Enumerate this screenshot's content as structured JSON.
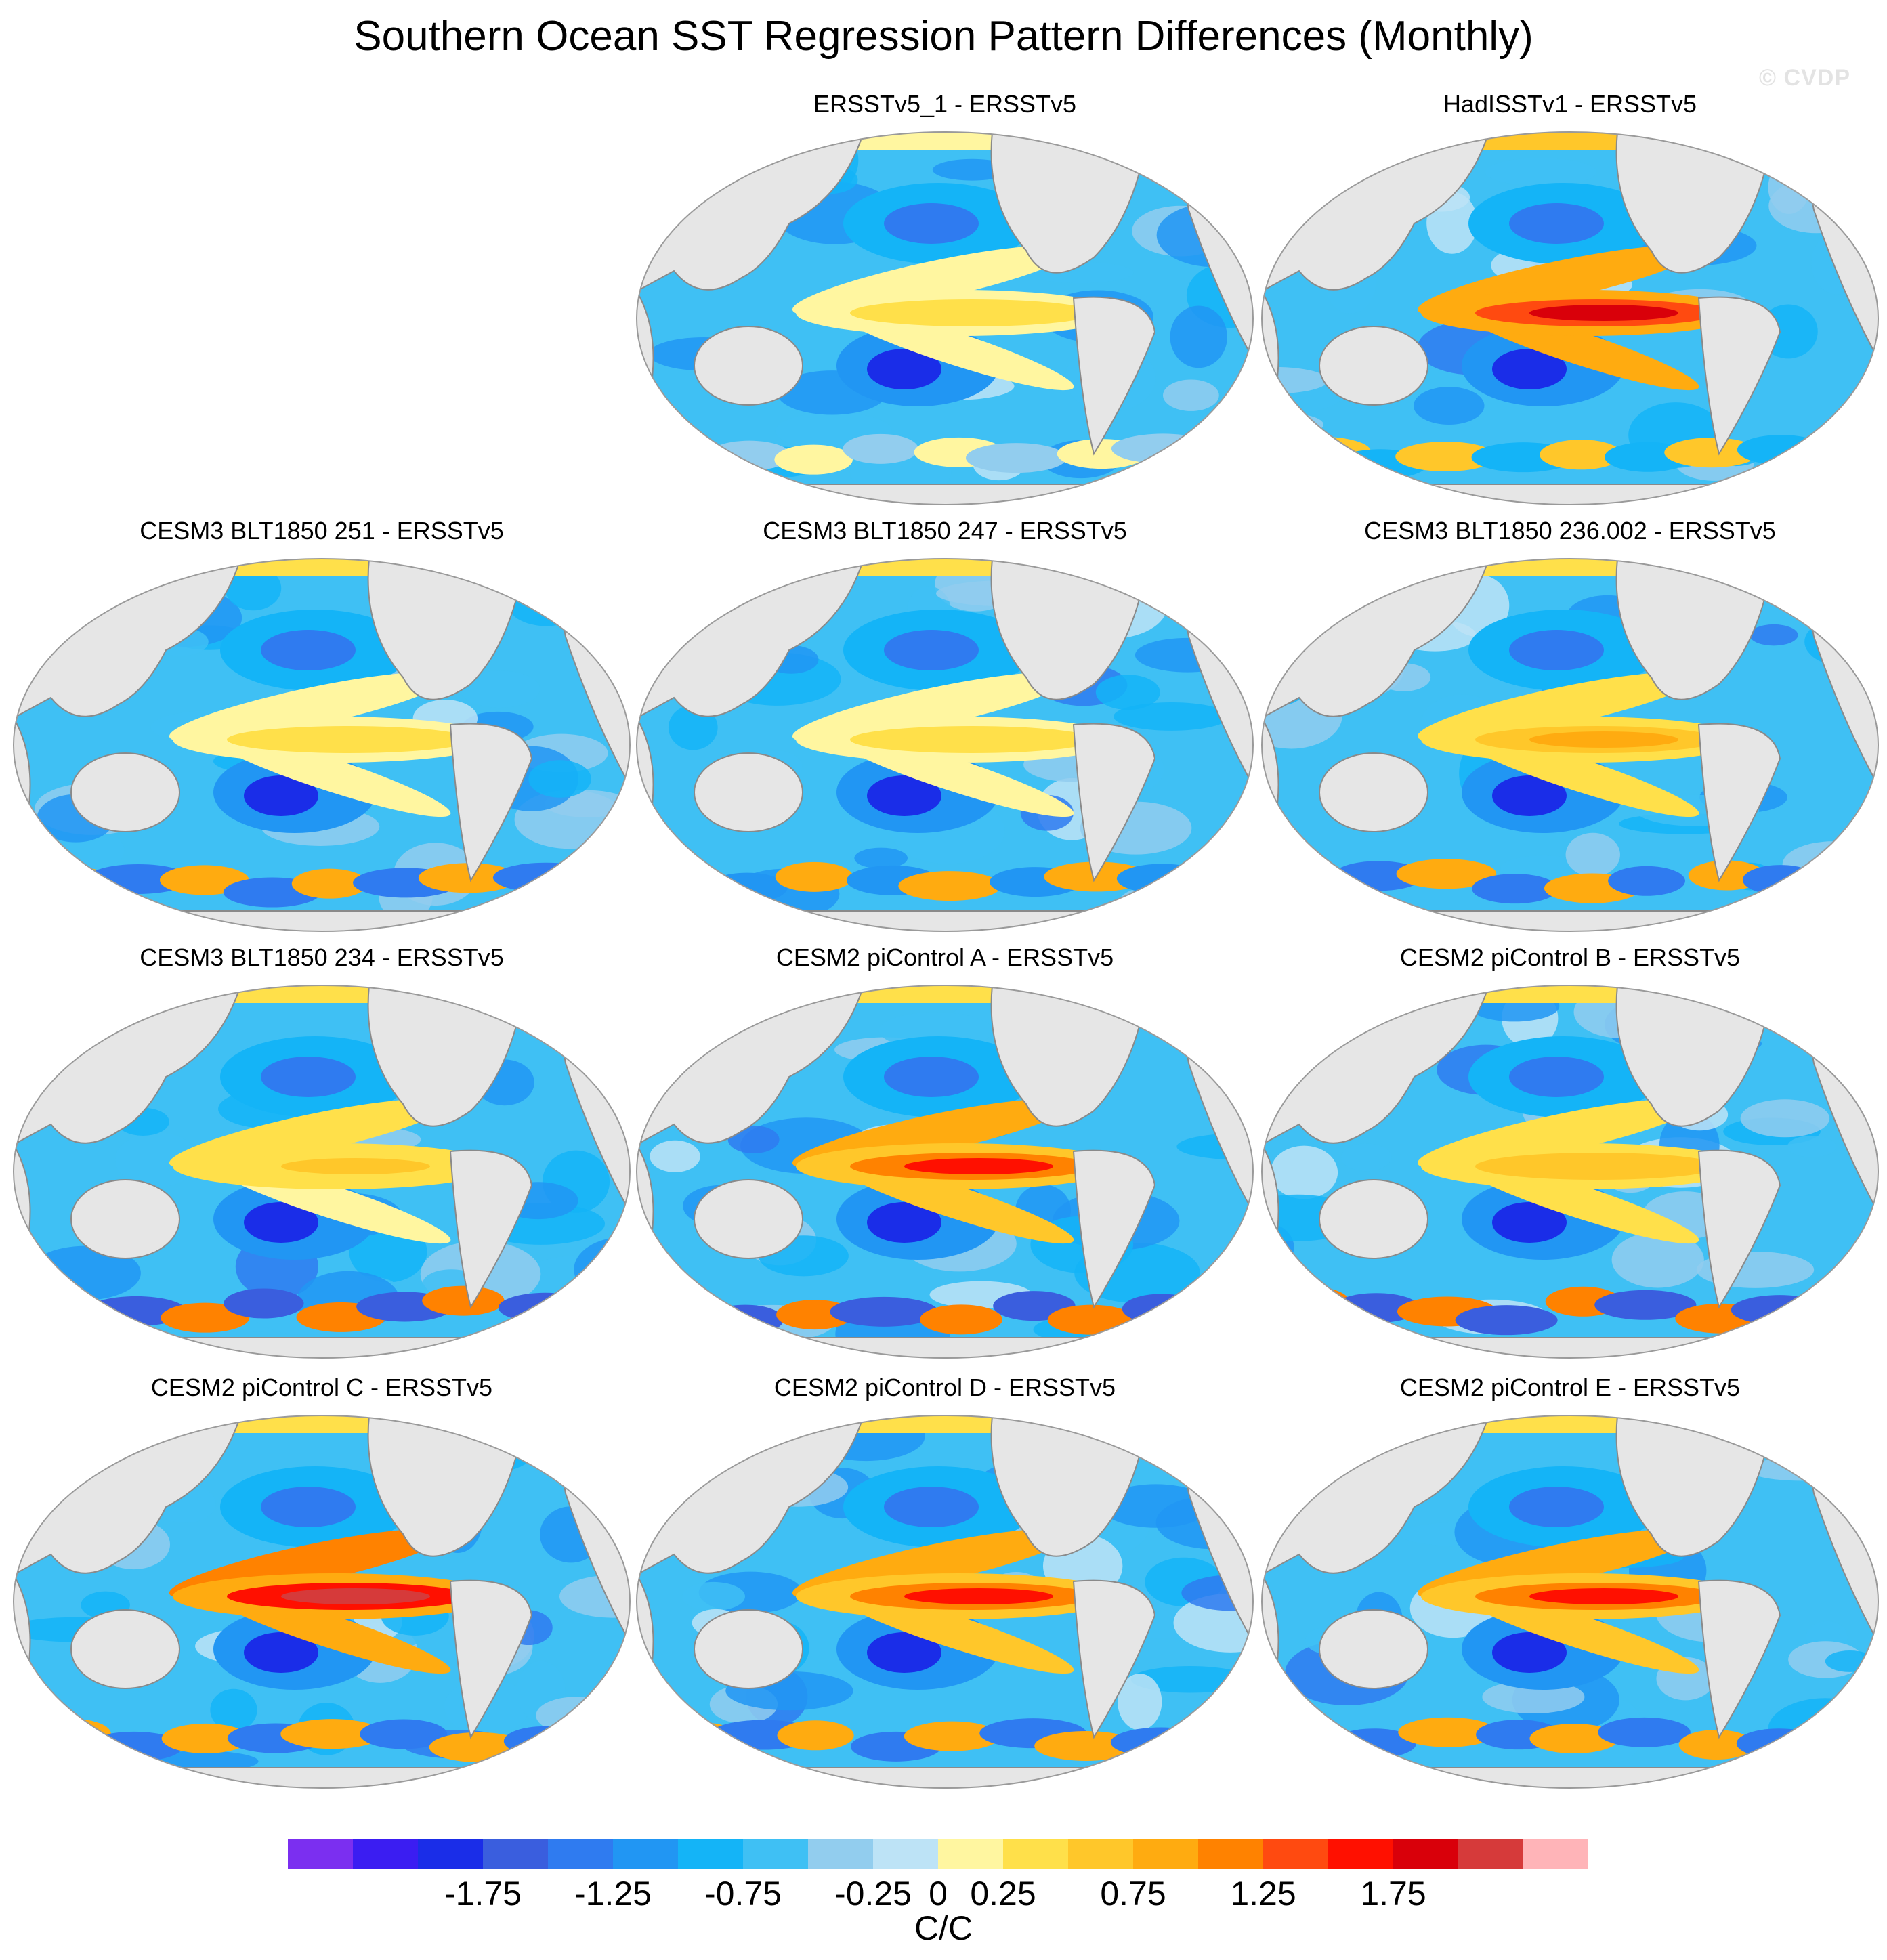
{
  "title": "Southern Ocean SST Regression Pattern Differences (Monthly)",
  "watermark": "© CVDP",
  "colorbar": {
    "colors": [
      "#7b2ff0",
      "#3b1df2",
      "#1a2de8",
      "#3a5ede",
      "#2f7bf0",
      "#2196f3",
      "#14b4f7",
      "#3fc0f4",
      "#92cdee",
      "#bde3f6",
      "#fff6a0",
      "#ffe04a",
      "#ffc72a",
      "#ffab10",
      "#ff8200",
      "#ff4a10",
      "#ff1000",
      "#d9000a",
      "#d63a3a",
      "#ffb4b8"
    ],
    "tick_labels": [
      "-1.75",
      "-1.25",
      "-0.75",
      "-0.25",
      "0",
      "0.25",
      "0.75",
      "1.25",
      "1.75"
    ],
    "tick_values": [
      -1.75,
      -1.25,
      -0.75,
      -0.25,
      0,
      0.25,
      0.75,
      1.25,
      1.75
    ],
    "unit": "C/C"
  },
  "chart_data": {
    "type": "heatmap",
    "land_color": "#e6e6e6",
    "panels": [
      {
        "title": "ERSSTv5_1 - ERSSTv5",
        "enso": 0.45,
        "south": 0.2,
        "north": 0.05
      },
      {
        "title": "HadISSTv1 - ERSSTv5",
        "enso": 1.9,
        "south": 0.7,
        "north": 0.4
      },
      {
        "title": "CESM3 BLT1850 251 - ERSSTv5",
        "enso": 0.4,
        "south": 0.9,
        "north": 0.3
      },
      {
        "title": "CESM3 BLT1850 247 - ERSSTv5",
        "enso": 0.45,
        "south": 0.8,
        "north": 0.3
      },
      {
        "title": "CESM3 BLT1850 236.002 - ERSSTv5",
        "enso": 0.9,
        "south": 0.9,
        "north": 0.3
      },
      {
        "title": "CESM3 BLT1850 234 - ERSSTv5",
        "enso": 0.6,
        "south": 1.1,
        "north": 0.3
      },
      {
        "title": "CESM2 piControl A - ERSSTv5",
        "enso": 1.5,
        "south": 1.1,
        "north": 0.2
      },
      {
        "title": "CESM2 piControl B - ERSSTv5",
        "enso": 0.7,
        "south": 1.1,
        "north": 0.2
      },
      {
        "title": "CESM2 piControl C - ERSSTv5",
        "enso": 2.1,
        "south": 0.9,
        "north": 0.2
      },
      {
        "title": "CESM2 piControl D - ERSSTv5",
        "enso": 1.6,
        "south": 0.9,
        "north": 0.2
      },
      {
        "title": "CESM2 piControl E - ERSSTv5",
        "enso": 1.6,
        "south": 0.9,
        "north": 0.2
      }
    ]
  }
}
